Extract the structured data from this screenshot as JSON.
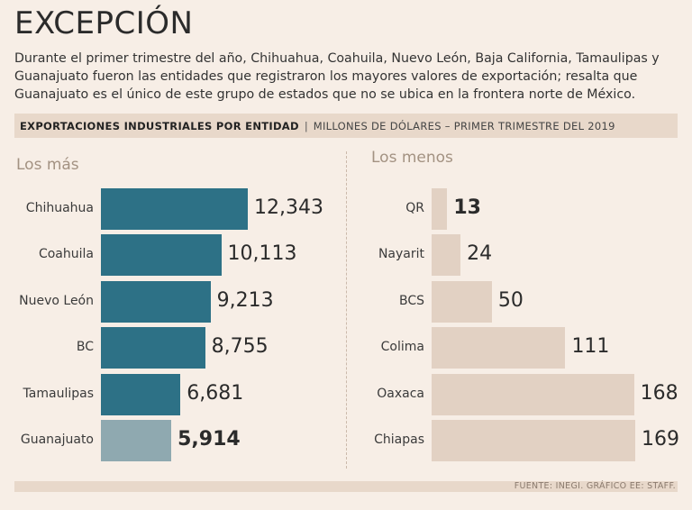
{
  "title": "EXCEPCIÓN",
  "intro": "Durante el primer trimestre del año, Chihuahua, Coahuila, Nuevo León, Baja California, Tamaulipas y Guanajuato fueron las entidades que registraron los mayores valores de exportación; resalta que Guanajuato es el único de este grupo de estados que no se ubica en la frontera norte de México.",
  "subtitle": {
    "main": "EXPORTACIONES INDUSTRIALES POR ENTIDAD",
    "separator": "|",
    "sub": "MILLONES DE DÓLARES – PRIMER TRIMESTRE DEL 2019"
  },
  "source": "FUENTE: INEGI. GRÁFICO EE: STAFF.",
  "colors": {
    "top_bar": "#2d7186",
    "top_highlight": "#8fa9b0",
    "bottom_bar": "#e2d1c3"
  },
  "chart_data": [
    {
      "type": "bar",
      "orientation": "horizontal",
      "heading": "Los más",
      "categories": [
        "Chihuahua",
        "Coahuila",
        "Nuevo León",
        "BC",
        "Tamaulipas",
        "Guanajuato"
      ],
      "values": [
        12343,
        10113,
        9213,
        8755,
        6681,
        5914
      ],
      "value_labels": [
        "12,343",
        "10,113",
        "9,213",
        "8,755",
        "6,681",
        "5,914"
      ],
      "highlight": "Guanajuato",
      "xlim": [
        0,
        12343
      ]
    },
    {
      "type": "bar",
      "orientation": "horizontal",
      "heading": "Los menos",
      "categories": [
        "QR",
        "Nayarit",
        "BCS",
        "Colima",
        "Oaxaca",
        "Chiapas"
      ],
      "values": [
        13,
        24,
        50,
        111,
        168,
        169
      ],
      "value_labels": [
        "13",
        "24",
        "50",
        "111",
        "168",
        "169"
      ],
      "highlight": "QR",
      "xlim": [
        0,
        169
      ]
    }
  ]
}
